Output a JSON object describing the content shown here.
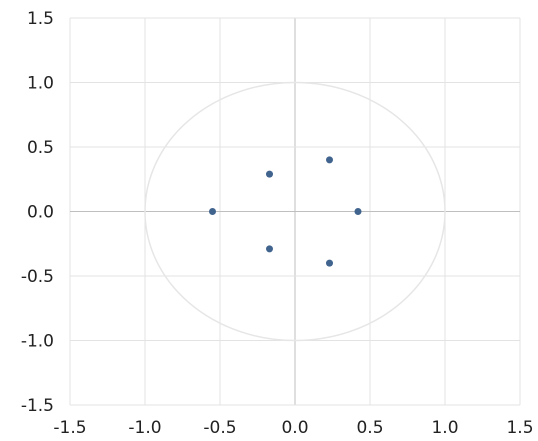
{
  "chart_data": {
    "type": "scatter",
    "title": "",
    "xlabel": "",
    "ylabel": "",
    "xlim": [
      -1.5,
      1.5
    ],
    "ylim": [
      -1.5,
      1.5
    ],
    "grid": true,
    "x_ticks": [
      "-1.5",
      "-1.0",
      "-0.5",
      "0.0",
      "0.5",
      "1.0",
      "1.5"
    ],
    "y_ticks": [
      "1.5",
      "1.0",
      "0.5",
      "0.0",
      "-0.5",
      "-1.0",
      "-1.5"
    ],
    "reference_circle": {
      "center": [
        0,
        0
      ],
      "radius": 1.0
    },
    "series": [
      {
        "points": [
          {
            "x": -0.55,
            "y": 0.0
          },
          {
            "x": -0.17,
            "y": 0.29
          },
          {
            "x": -0.17,
            "y": -0.29
          },
          {
            "x": 0.23,
            "y": 0.4
          },
          {
            "x": 0.23,
            "y": -0.4
          },
          {
            "x": 0.42,
            "y": 0.0
          }
        ]
      }
    ]
  },
  "colors": {
    "point": "#41648f",
    "grid": "#e3e3e3",
    "circle": "#e6e6e6",
    "zero_axis": "#bfbfbf"
  }
}
